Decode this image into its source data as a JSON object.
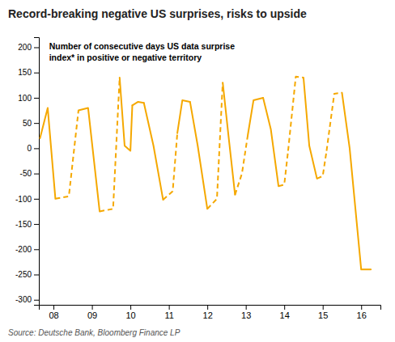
{
  "chart_data": {
    "type": "line",
    "title": "Record-breaking negative US surprises, risks to upside",
    "annotations": [
      "Number of consecutive days US data surprise\nindex* in positive or negative territory",
      "Source: Deutsche Bank, Bloomberg Finance LP"
    ],
    "color": "#F5A800",
    "xlim": [
      7.62,
      16.5
    ],
    "ylim": [
      -310,
      220
    ],
    "xticks": [
      {
        "value": 8,
        "label": "08"
      },
      {
        "value": 9,
        "label": "09"
      },
      {
        "value": 10,
        "label": "10"
      },
      {
        "value": 11,
        "label": "11"
      },
      {
        "value": 12,
        "label": "12"
      },
      {
        "value": 13,
        "label": "13"
      },
      {
        "value": 14,
        "label": "14"
      },
      {
        "value": 15,
        "label": "15"
      },
      {
        "value": 16,
        "label": "16"
      }
    ],
    "yticks": [
      -300,
      -250,
      -200,
      -150,
      -100,
      -50,
      0,
      50,
      100,
      150,
      200
    ],
    "series": [
      {
        "x": [
          7.65,
          7.85,
          8.05
        ],
        "values": [
          20,
          80,
          -100
        ],
        "line_style": "solid"
      },
      {
        "x": [
          8.05,
          8.4,
          8.65
        ],
        "values": [
          -100,
          -95,
          75
        ],
        "line_style": "dashed"
      },
      {
        "x": [
          8.65,
          8.9,
          9.2
        ],
        "values": [
          75,
          80,
          -125
        ],
        "line_style": "solid"
      },
      {
        "x": [
          9.2,
          9.55,
          9.72
        ],
        "values": [
          -125,
          -120,
          140
        ],
        "line_style": "dashed"
      },
      {
        "x": [
          9.72,
          9.85,
          10.0,
          10.05
        ],
        "values": [
          140,
          5,
          -5,
          85
        ],
        "line_style": "solid"
      },
      {
        "x": [
          10.05,
          10.2,
          10.35
        ],
        "values": [
          85,
          92,
          90
        ],
        "line_style": "solid"
      },
      {
        "x": [
          10.35,
          10.6,
          10.85
        ],
        "values": [
          90,
          5,
          -102
        ],
        "line_style": "solid"
      },
      {
        "x": [
          10.85,
          11.1,
          11.22
        ],
        "values": [
          -102,
          -85,
          30
        ],
        "line_style": "dashed"
      },
      {
        "x": [
          11.22,
          11.35,
          11.55
        ],
        "values": [
          30,
          95,
          92
        ],
        "line_style": "solid"
      },
      {
        "x": [
          11.55,
          11.75,
          12.0
        ],
        "values": [
          92,
          5,
          -120
        ],
        "line_style": "solid"
      },
      {
        "x": [
          12.0,
          12.25,
          12.4
        ],
        "values": [
          -120,
          -100,
          130
        ],
        "line_style": "dashed"
      },
      {
        "x": [
          12.4,
          12.55,
          12.72
        ],
        "values": [
          130,
          25,
          -92
        ],
        "line_style": "solid"
      },
      {
        "x": [
          12.72,
          12.9,
          13.05
        ],
        "values": [
          -92,
          -50,
          25
        ],
        "line_style": "dashed"
      },
      {
        "x": [
          13.05,
          13.2,
          13.45
        ],
        "values": [
          25,
          95,
          100
        ],
        "line_style": "solid"
      },
      {
        "x": [
          13.45,
          13.65,
          13.85
        ],
        "values": [
          100,
          38,
          -75
        ],
        "line_style": "solid"
      },
      {
        "x": [
          13.85,
          14.0,
          14.1
        ],
        "values": [
          -75,
          -72,
          -5
        ],
        "line_style": "dashed"
      },
      {
        "x": [
          14.1,
          14.3,
          14.5
        ],
        "values": [
          -5,
          142,
          140
        ],
        "line_style": "dashed"
      },
      {
        "x": [
          14.5,
          14.65,
          14.85
        ],
        "values": [
          140,
          5,
          -60
        ],
        "line_style": "solid"
      },
      {
        "x": [
          14.85,
          15.0,
          15.1
        ],
        "values": [
          -60,
          -55,
          -5
        ],
        "line_style": "dashed"
      },
      {
        "x": [
          15.1,
          15.3,
          15.5
        ],
        "values": [
          -5,
          108,
          110
        ],
        "line_style": "dashed"
      },
      {
        "x": [
          15.5,
          15.7,
          16.0,
          16.25
        ],
        "values": [
          110,
          0,
          -240,
          -240
        ],
        "line_style": "solid"
      }
    ]
  }
}
